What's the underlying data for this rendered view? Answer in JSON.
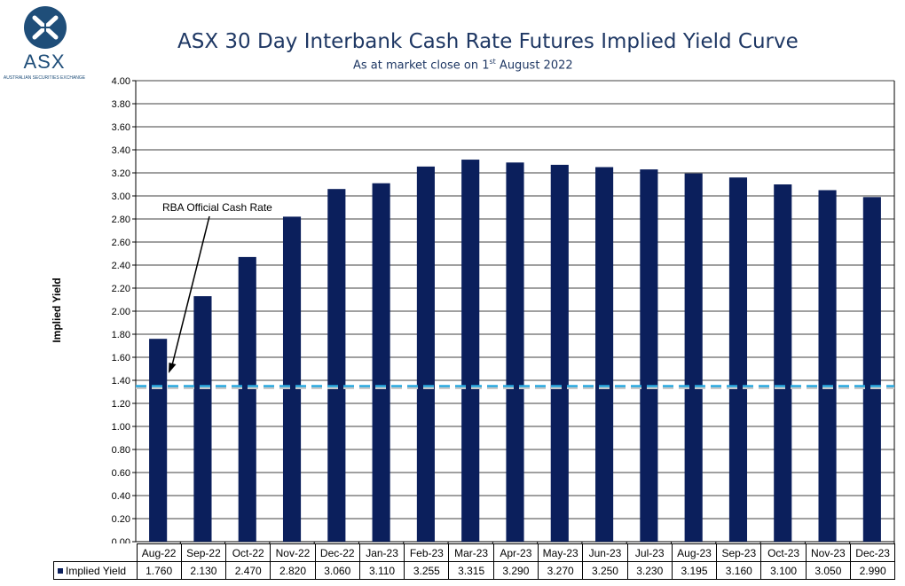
{
  "logo": {
    "text": "ASX",
    "subtext": "AUSTRALIAN SECURITIES EXCHANGE"
  },
  "colors": {
    "bar": "#0b1f5c",
    "rba_line": "#29a9e0",
    "title": "#1f3864"
  },
  "chart_data": {
    "type": "bar",
    "title": "ASX 30 Day Interbank Cash Rate Futures Implied Yield Curve",
    "subtitle_prefix": "As at market close on 1",
    "subtitle_sup": "st",
    "subtitle_suffix": " August 2022",
    "xlabel": "",
    "ylabel": "Implied Yield",
    "ylim": [
      0,
      4
    ],
    "ytick_step": 0.2,
    "yticks": [
      "0.00",
      "0.20",
      "0.40",
      "0.60",
      "0.80",
      "1.00",
      "1.20",
      "1.40",
      "1.60",
      "1.80",
      "2.00",
      "2.20",
      "2.40",
      "2.60",
      "2.80",
      "3.00",
      "3.20",
      "3.40",
      "3.60",
      "3.80",
      "4.00"
    ],
    "grid": true,
    "categories": [
      "Aug-22",
      "Sep-22",
      "Oct-22",
      "Nov-22",
      "Dec-22",
      "Jan-23",
      "Feb-23",
      "Mar-23",
      "Apr-23",
      "May-23",
      "Jun-23",
      "Jul-23",
      "Aug-23",
      "Sep-23",
      "Oct-23",
      "Nov-23",
      "Dec-23"
    ],
    "series": [
      {
        "name": "Implied Yield",
        "values": [
          1.76,
          2.13,
          2.47,
          2.82,
          3.06,
          3.11,
          3.255,
          3.315,
          3.29,
          3.27,
          3.25,
          3.23,
          3.195,
          3.16,
          3.1,
          3.05,
          2.99
        ],
        "labels": [
          "1.760",
          "2.130",
          "2.470",
          "2.820",
          "3.060",
          "3.110",
          "3.255",
          "3.315",
          "3.290",
          "3.270",
          "3.250",
          "3.230",
          "3.195",
          "3.160",
          "3.100",
          "3.050",
          "2.990"
        ]
      }
    ],
    "reference_line": {
      "value": 1.35,
      "style": "dashed"
    },
    "annotation": {
      "text": "RBA Official Cash Rate"
    },
    "data_table": true
  }
}
